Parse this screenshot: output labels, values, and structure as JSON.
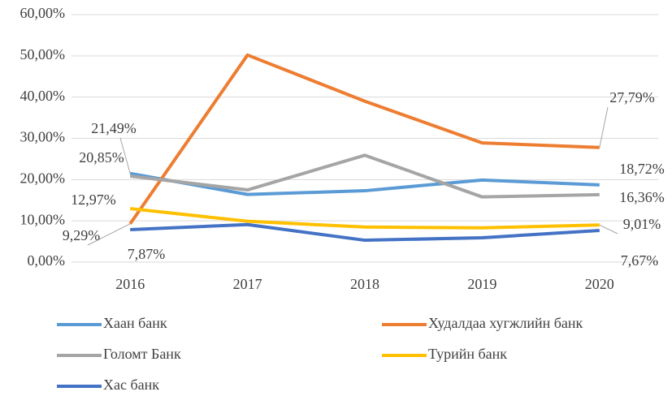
{
  "chart_data": {
    "type": "line",
    "categories": [
      "2016",
      "2017",
      "2018",
      "2019",
      "2020"
    ],
    "ylim": [
      0,
      60
    ],
    "yticks": [
      {
        "value": 0,
        "label": "0,00%"
      },
      {
        "value": 10,
        "label": "10,00%"
      },
      {
        "value": 20,
        "label": "20,00%"
      },
      {
        "value": 30,
        "label": "30,00%"
      },
      {
        "value": 40,
        "label": "40,00%"
      },
      {
        "value": 50,
        "label": "50,00%"
      },
      {
        "value": 60,
        "label": "60,00%"
      }
    ],
    "grid": true,
    "legend": "bottom",
    "series": [
      {
        "name": "Хаан банк",
        "color": "#5b9bd5",
        "values": [
          21.49,
          16.4,
          17.3,
          19.9,
          18.72
        ],
        "value_labels": [
          "21,49%",
          null,
          null,
          null,
          "18,72%"
        ]
      },
      {
        "name": "Худалдаа хугжлийн банк",
        "color": "#ed7d31",
        "values": [
          9.29,
          50.2,
          39.0,
          28.9,
          27.79
        ],
        "value_labels": [
          "9,29%",
          null,
          null,
          null,
          "27,79%"
        ]
      },
      {
        "name": "Голомт Банк",
        "color": "#a5a5a5",
        "values": [
          20.85,
          17.5,
          25.9,
          15.8,
          16.36
        ],
        "value_labels": [
          "20,85%",
          null,
          null,
          null,
          "16,36%"
        ]
      },
      {
        "name": "Турийн банк",
        "color": "#ffc000",
        "values": [
          12.97,
          9.9,
          8.5,
          8.3,
          9.01
        ],
        "value_labels": [
          "12,97%",
          null,
          null,
          null,
          "9,01%"
        ]
      },
      {
        "name": "Хас банк",
        "color": "#4472c4",
        "values": [
          7.87,
          9.1,
          5.3,
          5.9,
          7.67
        ],
        "value_labels": [
          "7,87%",
          null,
          null,
          null,
          "7,67%"
        ]
      }
    ]
  }
}
